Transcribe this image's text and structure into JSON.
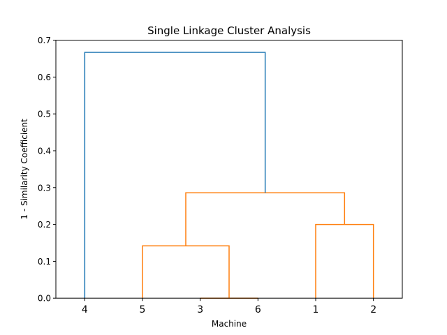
{
  "chart_data": {
    "type": "dendrogram",
    "title": "Single Linkage Cluster Analysis",
    "xlabel": "Machine",
    "ylabel": "1 - Similarity Coefficient",
    "ylim": [
      0,
      0.7
    ],
    "yticks": [
      "0.0",
      "0.1",
      "0.2",
      "0.3",
      "0.4",
      "0.5",
      "0.6",
      "0.7"
    ],
    "leaves": [
      "4",
      "5",
      "3",
      "6",
      "1",
      "2"
    ],
    "colors": {
      "above_threshold": "#1f77b4",
      "cluster": "#ff7f0e"
    },
    "links": [
      {
        "left": "3",
        "right": "6",
        "height": 0.0
      },
      {
        "left": "5",
        "right": "3,6",
        "height": 0.142
      },
      {
        "left": "1",
        "right": "2",
        "height": 0.2
      },
      {
        "left": "5,3,6",
        "right": "1,2",
        "height": 0.286
      },
      {
        "left": "4",
        "right": "5,3,6,1,2",
        "height": 0.667
      }
    ],
    "grid": false
  }
}
